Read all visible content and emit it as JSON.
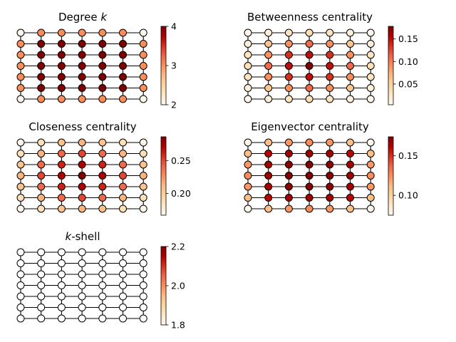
{
  "figure": {
    "grid": {
      "rows": 7,
      "cols": 7,
      "edges": "4-neighbour lattice"
    },
    "colormap": [
      "#fff7ec",
      "#fee8c8",
      "#fdd49e",
      "#fdbb84",
      "#fc8d59",
      "#ef6548",
      "#d7301f",
      "#b30000",
      "#7f0000"
    ]
  },
  "chart_data": [
    {
      "type": "network-heatmap",
      "title": "Degree k",
      "title_parts": [
        {
          "text": "Degree ",
          "italic": false
        },
        {
          "text": "k",
          "italic": true
        }
      ],
      "vmin": 2,
      "vmax": 4,
      "colorbar_ticks": [
        {
          "value": 2,
          "label": "2"
        },
        {
          "value": 3,
          "label": "3"
        },
        {
          "value": 4,
          "label": "4"
        }
      ],
      "node_values": [
        [
          2,
          3,
          3,
          3,
          3,
          3,
          2
        ],
        [
          3,
          4,
          4,
          4,
          4,
          4,
          3
        ],
        [
          3,
          4,
          4,
          4,
          4,
          4,
          3
        ],
        [
          3,
          4,
          4,
          4,
          4,
          4,
          3
        ],
        [
          3,
          4,
          4,
          4,
          4,
          4,
          3
        ],
        [
          3,
          4,
          4,
          4,
          4,
          4,
          3
        ],
        [
          2,
          3,
          3,
          3,
          3,
          3,
          2
        ]
      ]
    },
    {
      "type": "network-heatmap",
      "title": "Betweenness centrality",
      "title_parts": [
        {
          "text": "Betweenness centrality",
          "italic": false
        }
      ],
      "vmin": 0.004,
      "vmax": 0.178,
      "colorbar_ticks": [
        {
          "value": 0.05,
          "label": "0.05"
        },
        {
          "value": 0.1,
          "label": "0.10"
        },
        {
          "value": 0.15,
          "label": "0.15"
        }
      ],
      "node_values": [
        [
          0.004,
          0.015,
          0.03,
          0.035,
          0.03,
          0.015,
          0.004
        ],
        [
          0.015,
          0.06,
          0.09,
          0.11,
          0.09,
          0.06,
          0.015
        ],
        [
          0.03,
          0.09,
          0.135,
          0.15,
          0.135,
          0.09,
          0.03
        ],
        [
          0.035,
          0.11,
          0.15,
          0.178,
          0.15,
          0.11,
          0.035
        ],
        [
          0.03,
          0.09,
          0.135,
          0.15,
          0.135,
          0.09,
          0.03
        ],
        [
          0.015,
          0.06,
          0.09,
          0.11,
          0.09,
          0.06,
          0.015
        ],
        [
          0.004,
          0.015,
          0.03,
          0.035,
          0.03,
          0.015,
          0.004
        ]
      ]
    },
    {
      "type": "network-heatmap",
      "title": "Closeness centrality",
      "title_parts": [
        {
          "text": "Closeness centrality",
          "italic": false
        }
      ],
      "vmin": 0.167,
      "vmax": 0.286,
      "colorbar_ticks": [
        {
          "value": 0.2,
          "label": "0.20"
        },
        {
          "value": 0.25,
          "label": "0.25"
        }
      ],
      "node_values": [
        [
          0.167,
          0.188,
          0.207,
          0.214,
          0.207,
          0.188,
          0.167
        ],
        [
          0.188,
          0.214,
          0.24,
          0.25,
          0.24,
          0.214,
          0.188
        ],
        [
          0.207,
          0.24,
          0.261,
          0.273,
          0.261,
          0.24,
          0.207
        ],
        [
          0.214,
          0.25,
          0.273,
          0.286,
          0.273,
          0.25,
          0.214
        ],
        [
          0.207,
          0.24,
          0.261,
          0.273,
          0.261,
          0.24,
          0.207
        ],
        [
          0.188,
          0.214,
          0.24,
          0.25,
          0.24,
          0.214,
          0.188
        ],
        [
          0.167,
          0.188,
          0.207,
          0.214,
          0.207,
          0.188,
          0.167
        ]
      ]
    },
    {
      "type": "network-heatmap",
      "title": "Eigenvector centrality",
      "title_parts": [
        {
          "text": "Eigenvector centrality",
          "italic": false
        }
      ],
      "vmin": 0.075,
      "vmax": 0.174,
      "colorbar_ticks": [
        {
          "value": 0.1,
          "label": "0.10"
        },
        {
          "value": 0.15,
          "label": "0.15"
        }
      ],
      "node_values": [
        [
          0.075,
          0.11,
          0.122,
          0.125,
          0.122,
          0.11,
          0.075
        ],
        [
          0.11,
          0.16,
          0.165,
          0.167,
          0.165,
          0.16,
          0.11
        ],
        [
          0.122,
          0.165,
          0.171,
          0.173,
          0.171,
          0.165,
          0.122
        ],
        [
          0.125,
          0.167,
          0.173,
          0.174,
          0.173,
          0.167,
          0.125
        ],
        [
          0.122,
          0.165,
          0.171,
          0.173,
          0.171,
          0.165,
          0.122
        ],
        [
          0.11,
          0.16,
          0.165,
          0.167,
          0.165,
          0.16,
          0.11
        ],
        [
          0.075,
          0.11,
          0.122,
          0.125,
          0.122,
          0.11,
          0.075
        ]
      ]
    },
    {
      "type": "network-heatmap",
      "title": "k-shell",
      "title_parts": [
        {
          "text": "k",
          "italic": true
        },
        {
          "text": "-shell",
          "italic": false
        }
      ],
      "vmin": 1.8,
      "vmax": 2.2,
      "colorbar_ticks": [
        {
          "value": 1.8,
          "label": "1.8"
        },
        {
          "value": 2.0,
          "label": "2.0"
        },
        {
          "value": 2.2,
          "label": "2.2"
        }
      ],
      "node_values": [
        [
          2,
          2,
          2,
          2,
          2,
          2,
          2
        ],
        [
          2,
          2,
          2,
          2,
          2,
          2,
          2
        ],
        [
          2,
          2,
          2,
          2,
          2,
          2,
          2
        ],
        [
          2,
          2,
          2,
          2,
          2,
          2,
          2
        ],
        [
          2,
          2,
          2,
          2,
          2,
          2,
          2
        ],
        [
          2,
          2,
          2,
          2,
          2,
          2,
          2
        ],
        [
          2,
          2,
          2,
          2,
          2,
          2,
          2
        ]
      ],
      "node_fill": "#ffffff"
    }
  ]
}
